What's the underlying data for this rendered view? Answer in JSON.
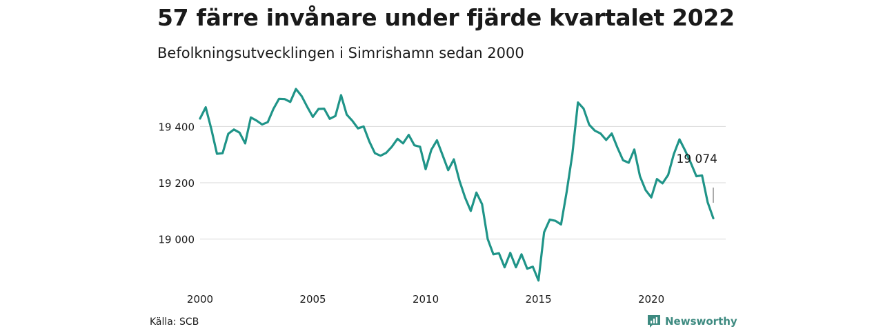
{
  "title": "57 färre invånare under fjärde kvartalet 2022",
  "subtitle": "Befolkningsutvecklingen i Simrishamn sedan 2000",
  "source": "Källa: SCB",
  "brand": {
    "name": "Newsworthy",
    "color": "#3d8a80",
    "icon": "newsworthy-logo-icon"
  },
  "chart_data": {
    "type": "line",
    "title": "57 färre invånare under fjärde kvartalet 2022",
    "subtitle": "Befolkningsutvecklingen i Simrishamn sedan 2000",
    "xlabel": "",
    "ylabel": "",
    "xlim": [
      2000,
      2023.3
    ],
    "ylim": [
      18850,
      19560
    ],
    "x_ticks": [
      2000,
      2005,
      2010,
      2015,
      2020
    ],
    "x_tick_labels": [
      "2000",
      "2005",
      "2010",
      "2015",
      "2020"
    ],
    "y_ticks": [
      19000,
      19200,
      19400
    ],
    "y_tick_labels": [
      "19 000",
      "19 200",
      "19 400"
    ],
    "grid": "horizontal",
    "line_color": "#1f9488",
    "annotation": {
      "text": "19 074",
      "x": 2022.75,
      "y": 19074
    },
    "series": [
      {
        "x": [
          2000.0,
          2000.25,
          2000.5,
          2000.75,
          2001.0,
          2001.25,
          2001.5,
          2001.75,
          2002.0,
          2002.25,
          2002.5,
          2002.75,
          2003.0,
          2003.25,
          2003.5,
          2003.75,
          2004.0,
          2004.25,
          2004.5,
          2004.75,
          2005.0,
          2005.25,
          2005.5,
          2005.75,
          2006.0,
          2006.25,
          2006.5,
          2006.75,
          2007.0,
          2007.25,
          2007.5,
          2007.75,
          2008.0,
          2008.25,
          2008.5,
          2008.75,
          2009.0,
          2009.25,
          2009.5,
          2009.75,
          2010.0,
          2010.25,
          2010.5,
          2010.75,
          2011.0,
          2011.25,
          2011.5,
          2011.75,
          2012.0,
          2012.25,
          2012.5,
          2012.75,
          2013.0,
          2013.25,
          2013.5,
          2013.75,
          2014.0,
          2014.25,
          2014.5,
          2014.75,
          2015.0,
          2015.25,
          2015.5,
          2015.75,
          2016.0,
          2016.25,
          2016.5,
          2016.75,
          2017.0,
          2017.25,
          2017.5,
          2017.75,
          2018.0,
          2018.25,
          2018.5,
          2018.75,
          2019.0,
          2019.25,
          2019.5,
          2019.75,
          2020.0,
          2020.25,
          2020.5,
          2020.75,
          2021.0,
          2021.25,
          2021.5,
          2021.75,
          2022.0,
          2022.25,
          2022.5,
          2022.75
        ],
        "values": [
          19428,
          19468,
          19390,
          19303,
          19305,
          19374,
          19389,
          19378,
          19340,
          19432,
          19421,
          19407,
          19415,
          19462,
          19498,
          19497,
          19487,
          19533,
          19508,
          19470,
          19434,
          19462,
          19463,
          19427,
          19437,
          19511,
          19442,
          19420,
          19393,
          19400,
          19347,
          19305,
          19296,
          19306,
          19328,
          19356,
          19340,
          19370,
          19333,
          19328,
          19248,
          19317,
          19351,
          19298,
          19245,
          19283,
          19207,
          19147,
          19100,
          19165,
          19124,
          19000,
          18946,
          18950,
          18900,
          18951,
          18900,
          18946,
          18895,
          18902,
          18853,
          19024,
          19069,
          19065,
          19052,
          19167,
          19300,
          19485,
          19463,
          19406,
          19385,
          19375,
          19352,
          19375,
          19325,
          19280,
          19271,
          19318,
          19223,
          19174,
          19148,
          19213,
          19198,
          19228,
          19302,
          19354,
          19315,
          19271,
          19223,
          19226,
          19131,
          19074
        ]
      }
    ]
  }
}
